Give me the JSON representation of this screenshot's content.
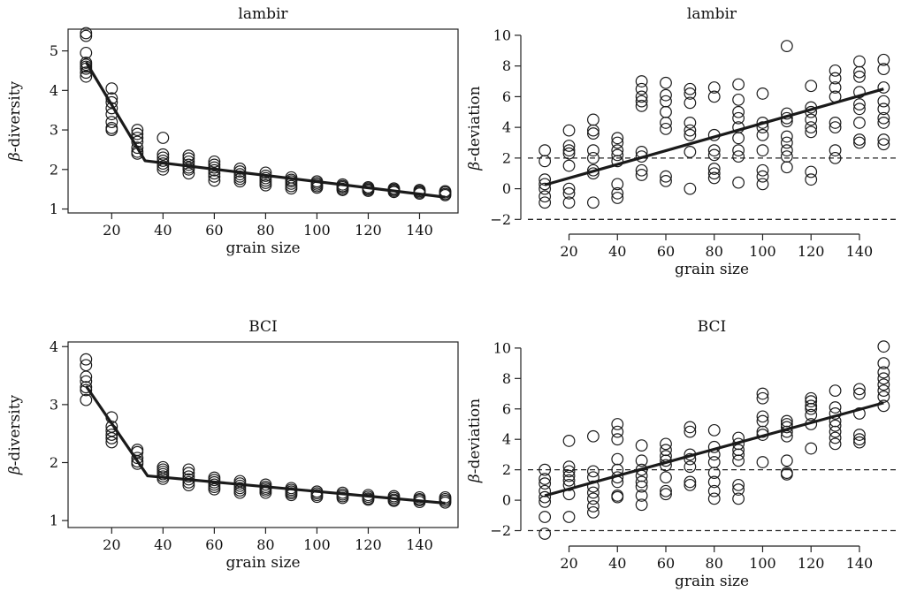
{
  "chart_data": [
    {
      "type": "scatter",
      "title": "lambir",
      "xlabel": "grain size",
      "ylabel_symbol": "β",
      "ylabel_text": "-diversity",
      "xlim": [
        3,
        155
      ],
      "ylim": [
        0.9,
        5.55
      ],
      "xticks": [
        20,
        40,
        60,
        80,
        100,
        120,
        140
      ],
      "yticks": [
        1,
        2,
        3,
        4,
        5
      ],
      "frame": true,
      "x": [
        10,
        20,
        30,
        40,
        50,
        60,
        70,
        80,
        90,
        100,
        110,
        120,
        130,
        140,
        150
      ],
      "y": [
        [
          5.45,
          5.38,
          4.95,
          4.7,
          4.65,
          4.6,
          4.55,
          4.45,
          4.35
        ],
        [
          4.05,
          3.8,
          3.7,
          3.55,
          3.4,
          3.2,
          3.05,
          3.0
        ],
        [
          3.0,
          2.9,
          2.8,
          2.7,
          2.55,
          2.45,
          2.4
        ],
        [
          2.8,
          2.38,
          2.3,
          2.22,
          2.15,
          2.08,
          2.0
        ],
        [
          2.35,
          2.28,
          2.2,
          2.12,
          2.05,
          2.0,
          1.9
        ],
        [
          2.2,
          2.12,
          2.05,
          1.98,
          1.9,
          1.82,
          1.72
        ],
        [
          2.02,
          1.95,
          1.88,
          1.82,
          1.76,
          1.7
        ],
        [
          1.92,
          1.84,
          1.78,
          1.72,
          1.66,
          1.6
        ],
        [
          1.8,
          1.74,
          1.7,
          1.64,
          1.58,
          1.52
        ],
        [
          1.7,
          1.66,
          1.62,
          1.58,
          1.54
        ],
        [
          1.62,
          1.58,
          1.55,
          1.51,
          1.48
        ],
        [
          1.55,
          1.52,
          1.49,
          1.46
        ],
        [
          1.52,
          1.49,
          1.46,
          1.43
        ],
        [
          1.48,
          1.45,
          1.42,
          1.39
        ],
        [
          1.45,
          1.42,
          1.38,
          1.35
        ]
      ],
      "fit_line": {
        "x": [
          10,
          33,
          150
        ],
        "y": [
          4.72,
          2.22,
          1.3
        ]
      },
      "ref_lines": []
    },
    {
      "type": "scatter",
      "title": "lambir",
      "xlabel": "grain size",
      "ylabel_symbol": "β",
      "ylabel_text": "-deviation",
      "xlim": [
        3,
        155
      ],
      "ylim": [
        -2.5,
        10.4
      ],
      "xticks": [
        20,
        40,
        60,
        80,
        100,
        120,
        140
      ],
      "yticks": [
        -2,
        0,
        2,
        4,
        6,
        8,
        10
      ],
      "frame": false,
      "x": [
        10,
        20,
        30,
        40,
        50,
        60,
        70,
        80,
        90,
        100,
        110,
        120,
        130,
        140,
        150
      ],
      "y": [
        [
          2.5,
          1.8,
          0.6,
          0.3,
          0.0,
          -0.5,
          -0.9
        ],
        [
          3.8,
          2.8,
          2.5,
          2.3,
          1.5,
          0.0,
          -0.3,
          -0.9
        ],
        [
          4.5,
          3.8,
          3.6,
          2.5,
          2.0,
          1.2,
          1.0,
          -0.9
        ],
        [
          3.3,
          3.0,
          2.5,
          2.2,
          1.8,
          0.3,
          -0.3,
          -0.6
        ],
        [
          7.0,
          6.5,
          6.0,
          5.7,
          5.4,
          2.4,
          2.1,
          1.2,
          0.9
        ],
        [
          6.9,
          6.1,
          5.7,
          5.0,
          4.3,
          3.9,
          0.8,
          0.5
        ],
        [
          6.5,
          6.2,
          5.6,
          4.3,
          3.8,
          3.5,
          2.4,
          0.0
        ],
        [
          6.6,
          6.0,
          3.5,
          2.5,
          2.2,
          1.3,
          1.0,
          0.7
        ],
        [
          6.8,
          5.8,
          5.0,
          4.6,
          4.0,
          3.3,
          2.5,
          2.1,
          0.4
        ],
        [
          6.2,
          4.3,
          4.0,
          3.5,
          2.5,
          1.2,
          0.8,
          0.3
        ],
        [
          9.3,
          4.9,
          4.6,
          4.4,
          3.4,
          3.0,
          2.5,
          2.1,
          1.4
        ],
        [
          6.7,
          5.3,
          5.0,
          4.5,
          4.0,
          3.7,
          1.1,
          0.6
        ],
        [
          7.7,
          7.2,
          6.6,
          6.0,
          4.3,
          4.0,
          2.5,
          2.0
        ],
        [
          8.3,
          7.6,
          7.3,
          6.3,
          5.5,
          5.2,
          4.3,
          3.2,
          3.0
        ],
        [
          8.4,
          7.8,
          6.6,
          5.7,
          5.2,
          4.6,
          4.3,
          3.2,
          2.9
        ]
      ],
      "fit_line": {
        "x": [
          10,
          150
        ],
        "y": [
          0.25,
          6.5
        ]
      },
      "ref_lines": [
        2,
        -2
      ]
    },
    {
      "type": "scatter",
      "title": "BCI",
      "xlabel": "grain size",
      "ylabel_symbol": "β",
      "ylabel_text": "-diversity",
      "xlim": [
        3,
        155
      ],
      "ylim": [
        0.88,
        4.08
      ],
      "xticks": [
        20,
        40,
        60,
        80,
        100,
        120,
        140
      ],
      "yticks": [
        1,
        2,
        3,
        4
      ],
      "frame": true,
      "x": [
        10,
        20,
        30,
        40,
        50,
        60,
        70,
        80,
        90,
        100,
        110,
        120,
        130,
        140,
        150
      ],
      "y": [
        [
          3.78,
          3.68,
          3.48,
          3.4,
          3.3,
          3.25,
          3.08
        ],
        [
          2.78,
          2.62,
          2.55,
          2.48,
          2.42,
          2.35
        ],
        [
          2.22,
          2.18,
          2.08,
          2.02,
          1.98
        ],
        [
          1.92,
          1.88,
          1.84,
          1.8,
          1.76,
          1.72
        ],
        [
          1.88,
          1.82,
          1.76,
          1.71,
          1.66,
          1.61
        ],
        [
          1.74,
          1.7,
          1.66,
          1.62,
          1.58,
          1.54
        ],
        [
          1.68,
          1.64,
          1.6,
          1.56,
          1.52,
          1.48
        ],
        [
          1.62,
          1.58,
          1.55,
          1.52,
          1.48
        ],
        [
          1.56,
          1.53,
          1.5,
          1.47,
          1.44
        ],
        [
          1.5,
          1.47,
          1.44,
          1.41
        ],
        [
          1.48,
          1.45,
          1.42,
          1.39
        ],
        [
          1.44,
          1.41,
          1.38,
          1.36
        ],
        [
          1.42,
          1.39,
          1.36,
          1.34
        ],
        [
          1.4,
          1.37,
          1.35,
          1.32
        ],
        [
          1.4,
          1.37,
          1.34,
          1.31
        ]
      ],
      "fit_line": {
        "x": [
          10,
          34,
          150
        ],
        "y": [
          3.32,
          1.77,
          1.3
        ]
      },
      "ref_lines": []
    },
    {
      "type": "scatter",
      "title": "BCI",
      "xlabel": "grain size",
      "ylabel_symbol": "β",
      "ylabel_text": "-deviation",
      "xlim": [
        3,
        155
      ],
      "ylim": [
        -2.55,
        10.4
      ],
      "xticks": [
        20,
        40,
        60,
        80,
        100,
        120,
        140
      ],
      "yticks": [
        -2,
        0,
        2,
        4,
        6,
        8,
        10
      ],
      "frame": false,
      "x": [
        10,
        20,
        30,
        40,
        50,
        60,
        70,
        80,
        90,
        100,
        110,
        120,
        130,
        140,
        150
      ],
      "y": [
        [
          2.0,
          1.4,
          1.1,
          0.6,
          0.2,
          -0.1,
          -1.1,
          -2.2
        ],
        [
          3.9,
          2.2,
          1.9,
          1.6,
          1.3,
          1.0,
          0.4,
          -1.1
        ],
        [
          4.2,
          1.9,
          1.5,
          0.9,
          0.5,
          0.1,
          -0.4,
          -0.8
        ],
        [
          5.0,
          4.5,
          4.0,
          2.7,
          2.0,
          1.5,
          1.2,
          0.3,
          0.2
        ],
        [
          3.6,
          2.6,
          2.0,
          1.6,
          1.2,
          0.9,
          0.3,
          -0.3
        ],
        [
          3.7,
          3.3,
          2.9,
          2.6,
          2.3,
          1.5,
          0.6,
          0.4
        ],
        [
          4.8,
          4.5,
          3.0,
          2.7,
          2.2,
          1.2,
          1.0
        ],
        [
          4.6,
          3.5,
          3.0,
          2.5,
          1.8,
          1.2,
          0.6,
          0.1
        ],
        [
          4.1,
          3.7,
          3.3,
          3.0,
          2.6,
          1.0,
          0.7,
          0.1
        ],
        [
          7.0,
          6.7,
          5.5,
          5.2,
          4.5,
          4.3,
          2.5
        ],
        [
          5.2,
          5.0,
          4.8,
          4.5,
          4.2,
          2.6,
          1.8,
          1.7
        ],
        [
          6.7,
          6.5,
          6.2,
          6.0,
          5.6,
          5.0,
          3.4
        ],
        [
          7.2,
          6.1,
          5.7,
          5.2,
          4.9,
          4.5,
          4.1,
          3.7
        ],
        [
          7.3,
          7.0,
          5.7,
          4.3,
          4.0,
          3.8
        ],
        [
          10.1,
          9.0,
          8.4,
          8.0,
          7.6,
          7.2,
          6.8,
          6.2
        ]
      ],
      "fit_line": {
        "x": [
          10,
          150
        ],
        "y": [
          0.3,
          6.4
        ]
      },
      "ref_lines": [
        2,
        -2
      ]
    }
  ]
}
